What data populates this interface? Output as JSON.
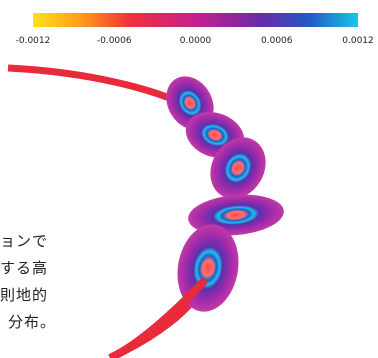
{
  "colorbar": {
    "ticks": [
      "-0.0012",
      "-0.0006",
      "0.0000",
      "0.0006",
      "0.0012"
    ]
  },
  "caption": {
    "lines": [
      "ョンで",
      "する高",
      "則地的",
      "分布。"
    ]
  }
}
